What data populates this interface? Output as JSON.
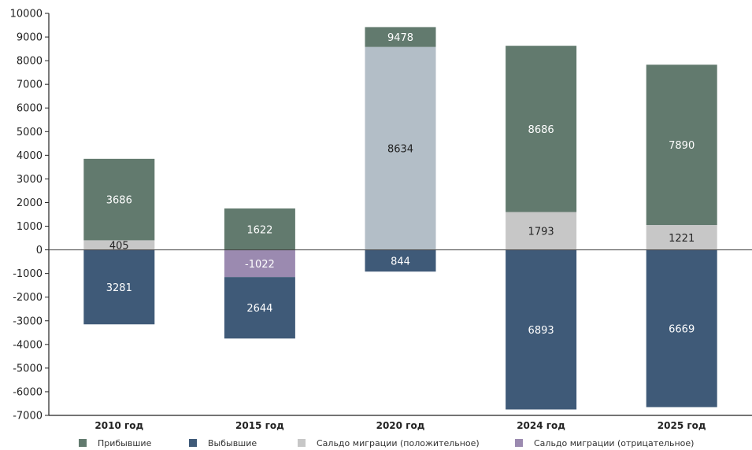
{
  "chart_data": {
    "type": "bar",
    "stacked": true,
    "categories": [
      "2010 год",
      "2015 год",
      "2020 год",
      "2024 год",
      "2025 год"
    ],
    "ylim": [
      -7000,
      10000
    ],
    "yticks": [
      -7000,
      -6000,
      -5000,
      -4000,
      -3000,
      -2000,
      -1000,
      0,
      1000,
      2000,
      3000,
      4000,
      5000,
      6000,
      7000,
      8000,
      9000,
      10000
    ],
    "ytick_labels": [
      "-7000",
      "-6000",
      "-5000",
      "-4000",
      "-3000",
      "-2000",
      "-1000",
      "0",
      "1000",
      "2000",
      "3000",
      "4000",
      "5000",
      "6000",
      "7000",
      "8000",
      "9000",
      "10000"
    ],
    "grid": false,
    "legend_position": "bottom",
    "series": [
      {
        "name": "Прибывшие",
        "color": "#627a6e"
      },
      {
        "name": "Выбывшие",
        "color": "#3f5a78"
      },
      {
        "name": "Сальдо миграции (положительное)",
        "color": "#c7c7c7"
      },
      {
        "name": "Сальдо миграции (отрицательное)",
        "color": "#9b8ab0"
      }
    ],
    "bars": [
      {
        "category": "2010 год",
        "segments": [
          {
            "series": 2,
            "from": 0,
            "to": 405,
            "label": "405"
          },
          {
            "series": 0,
            "from": 405,
            "to": 3850,
            "label": "3686"
          },
          {
            "series": 1,
            "from": -3150,
            "to": 0,
            "label": "3281"
          }
        ]
      },
      {
        "category": "2015 год",
        "segments": [
          {
            "series": 0,
            "from": 0,
            "to": 1750,
            "label": "1622"
          },
          {
            "series": 3,
            "from": -1150,
            "to": 0,
            "label": "-1022"
          },
          {
            "series": 1,
            "from": -3750,
            "to": -1150,
            "label": "2644"
          }
        ]
      },
      {
        "category": "2020 год",
        "segments": [
          {
            "series": 2,
            "from": 0,
            "to": 8580,
            "label": "8634",
            "color": "#b3bec7"
          },
          {
            "series": 0,
            "from": 8580,
            "to": 9420,
            "label": "9478"
          },
          {
            "series": 1,
            "from": -920,
            "to": 0,
            "label": "844"
          }
        ]
      },
      {
        "category": "2024 год",
        "segments": [
          {
            "series": 2,
            "from": 0,
            "to": 1600,
            "label": "1793"
          },
          {
            "series": 0,
            "from": 1600,
            "to": 8630,
            "label": "8686"
          },
          {
            "series": 1,
            "from": -6750,
            "to": 0,
            "label": "6893"
          }
        ]
      },
      {
        "category": "2025 год",
        "segments": [
          {
            "series": 2,
            "from": 0,
            "to": 1050,
            "label": "1221"
          },
          {
            "series": 0,
            "from": 1050,
            "to": 7830,
            "label": "7890"
          },
          {
            "series": 1,
            "from": -6650,
            "to": 0,
            "label": "6669"
          }
        ]
      }
    ]
  }
}
